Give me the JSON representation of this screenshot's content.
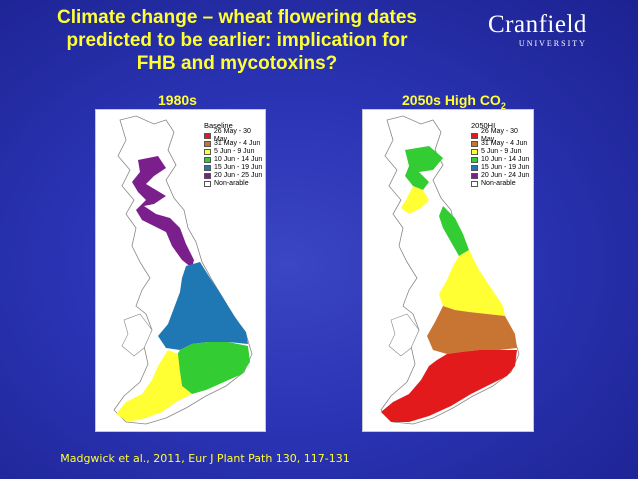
{
  "slide": {
    "title_line1": "Climate change – wheat flowering dates",
    "title_line2": "predicted to be earlier: implication for",
    "title_line3": "FHB and mycotoxins?",
    "logo_name": "Cranfield",
    "logo_sub": "UNIVERSITY",
    "citation": "Madgwick et al., 2011, Eur J Plant Path 130, 117-131"
  },
  "left_map": {
    "label": "1980s",
    "legend_title": "Baseline",
    "legend": [
      {
        "label": "26 May - 30 May",
        "color": "#e31a1c"
      },
      {
        "label": "31 May - 4 Jun",
        "color": "#c87533"
      },
      {
        "label": "5 Jun - 9 Jun",
        "color": "#ffff33"
      },
      {
        "label": "10 Jun - 14 Jun",
        "color": "#33cc33"
      },
      {
        "label": "15 Jun - 19 Jun",
        "color": "#1f78b4"
      },
      {
        "label": "20 Jun - 25 Jun",
        "color": "#7b1f8c"
      },
      {
        "label": "Non-arable",
        "color": "#ffffff"
      }
    ]
  },
  "right_map": {
    "label_main": "2050s High CO",
    "label_sub": "2",
    "legend_title": "2050HI",
    "legend": [
      {
        "label": "26 May - 30 May",
        "color": "#e31a1c"
      },
      {
        "label": "31 May - 4 Jun",
        "color": "#c87533"
      },
      {
        "label": "5 Jun - 9 Jun",
        "color": "#ffff33"
      },
      {
        "label": "10 Jun - 14 Jun",
        "color": "#33cc33"
      },
      {
        "label": "15 Jun - 19 Jun",
        "color": "#1f78b4"
      },
      {
        "label": "20 Jun - 24 Jun",
        "color": "#7b1f8c"
      },
      {
        "label": "Non-arable",
        "color": "#ffffff"
      }
    ]
  }
}
